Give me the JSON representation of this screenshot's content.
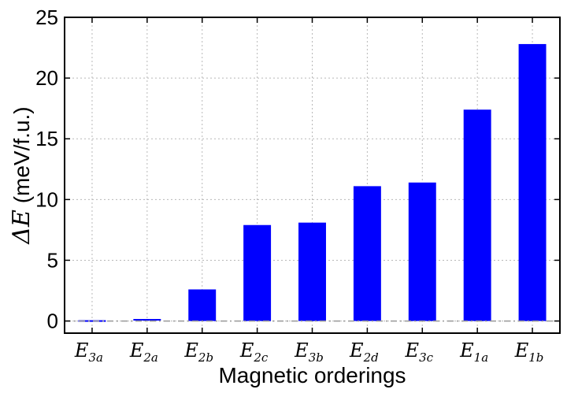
{
  "chart_data": {
    "type": "bar",
    "categories": [
      {
        "base": "E",
        "sub": "3a"
      },
      {
        "base": "E",
        "sub": "2a"
      },
      {
        "base": "E",
        "sub": "2b"
      },
      {
        "base": "E",
        "sub": "2c"
      },
      {
        "base": "E",
        "sub": "3b"
      },
      {
        "base": "E",
        "sub": "2d"
      },
      {
        "base": "E",
        "sub": "3c"
      },
      {
        "base": "E",
        "sub": "1a"
      },
      {
        "base": "E",
        "sub": "1b"
      }
    ],
    "values": [
      0.0,
      0.1,
      2.6,
      7.9,
      8.1,
      11.1,
      11.4,
      17.4,
      22.8
    ],
    "xlabel": "Magnetic orderings",
    "ylabel_symbol": "ΔE",
    "ylabel_unit": " (meV/f.u.)",
    "ylim": [
      -1,
      25
    ],
    "yticks": [
      0,
      5,
      10,
      15,
      20,
      25
    ],
    "grid": true,
    "reference_line": 0,
    "bar_color": "#0000ff",
    "reference_line_color": "#999999"
  }
}
